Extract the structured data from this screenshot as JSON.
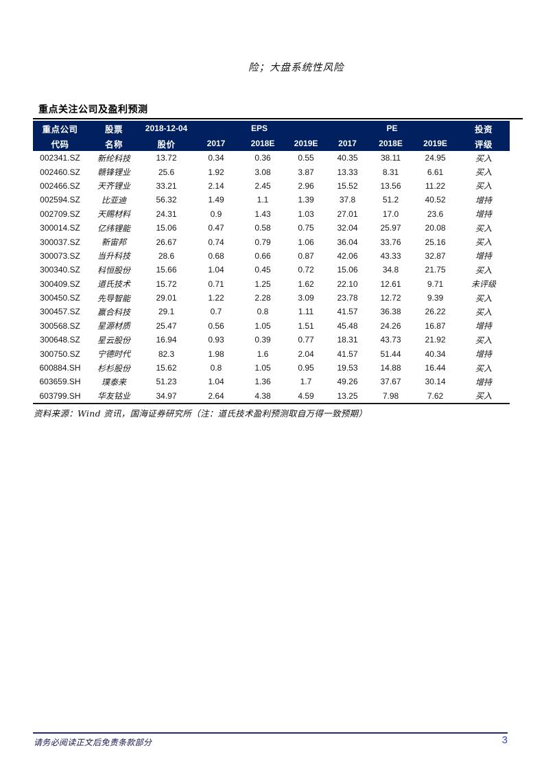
{
  "page": {
    "top_paragraph": "险；大盘系统性风险",
    "section_title": "重点关注公司及盈利预测",
    "source_note": "资料来源：Wind 资讯，国海证券研究所（注：道氏技术盈利预测取自万得一致预期）",
    "footer_disclaimer": "请务必阅读正文后免责条款部分",
    "page_number": "3"
  },
  "colors": {
    "header_bg": "#002060",
    "rule_dark": "#000000",
    "table_bottom_rule": "#1a1a1a",
    "footer_rule": "#1f2a78",
    "footer_text_color": "#14144b",
    "page_number_blue": "#3448c8"
  },
  "table": {
    "header_row1": [
      {
        "label": "重点公司",
        "span": 1,
        "type": "cjk"
      },
      {
        "label": "股票",
        "span": 1,
        "type": "cjk"
      },
      {
        "label": "2018-12-04",
        "span": 1,
        "type": "num"
      },
      {
        "label": "EPS",
        "span": 3,
        "type": "num"
      },
      {
        "label": "PE",
        "span": 3,
        "type": "num"
      },
      {
        "label": "投资",
        "span": 1,
        "type": "cjk"
      }
    ],
    "header_row2": [
      {
        "label": "代码",
        "span": 1,
        "type": "cjk"
      },
      {
        "label": "名称",
        "span": 1,
        "type": "cjk"
      },
      {
        "label": "股价",
        "span": 1,
        "type": "cjk"
      },
      {
        "label": "2017",
        "span": 1,
        "type": "num"
      },
      {
        "label": "2018E",
        "span": 1,
        "type": "num"
      },
      {
        "label": "2019E",
        "span": 1,
        "type": "num"
      },
      {
        "label": "2017",
        "span": 1,
        "type": "num"
      },
      {
        "label": "2018E",
        "span": 1,
        "type": "num"
      },
      {
        "label": "2019E",
        "span": 1,
        "type": "num"
      },
      {
        "label": "评级",
        "span": 1,
        "type": "cjk"
      }
    ],
    "rows": [
      [
        "002341.SZ",
        "新纶科技",
        "13.72",
        "0.34",
        "0.36",
        "0.55",
        "40.35",
        "38.11",
        "24.95",
        "买入"
      ],
      [
        "002460.SZ",
        "赣锋锂业",
        "25.6",
        "1.92",
        "3.08",
        "3.87",
        "13.33",
        "8.31",
        "6.61",
        "买入"
      ],
      [
        "002466.SZ",
        "天齐锂业",
        "33.21",
        "2.14",
        "2.45",
        "2.96",
        "15.52",
        "13.56",
        "11.22",
        "买入"
      ],
      [
        "002594.SZ",
        "比亚迪",
        "56.32",
        "1.49",
        "1.1",
        "1.39",
        "37.8",
        "51.2",
        "40.52",
        "增持"
      ],
      [
        "002709.SZ",
        "天赐材料",
        "24.31",
        "0.9",
        "1.43",
        "1.03",
        "27.01",
        "17.0",
        "23.6",
        "增持"
      ],
      [
        "300014.SZ",
        "亿纬锂能",
        "15.06",
        "0.47",
        "0.58",
        "0.75",
        "32.04",
        "25.97",
        "20.08",
        "买入"
      ],
      [
        "300037.SZ",
        "新宙邦",
        "26.67",
        "0.74",
        "0.79",
        "1.06",
        "36.04",
        "33.76",
        "25.16",
        "买入"
      ],
      [
        "300073.SZ",
        "当升科技",
        "28.6",
        "0.68",
        "0.66",
        "0.87",
        "42.06",
        "43.33",
        "32.87",
        "增持"
      ],
      [
        "300340.SZ",
        "科恒股份",
        "15.66",
        "1.04",
        "0.45",
        "0.72",
        "15.06",
        "34.8",
        "21.75",
        "买入"
      ],
      [
        "300409.SZ",
        "道氏技术",
        "15.72",
        "0.71",
        "1.25",
        "1.62",
        "22.10",
        "12.61",
        "9.71",
        "未评级"
      ],
      [
        "300450.SZ",
        "先导智能",
        "29.01",
        "1.22",
        "2.28",
        "3.09",
        "23.78",
        "12.72",
        "9.39",
        "买入"
      ],
      [
        "300457.SZ",
        "赢合科技",
        "29.1",
        "0.7",
        "0.8",
        "1.11",
        "41.57",
        "36.38",
        "26.22",
        "买入"
      ],
      [
        "300568.SZ",
        "星源材质",
        "25.47",
        "0.56",
        "1.05",
        "1.51",
        "45.48",
        "24.26",
        "16.87",
        "增持"
      ],
      [
        "300648.SZ",
        "星云股份",
        "16.94",
        "0.93",
        "0.39",
        "0.77",
        "18.31",
        "43.73",
        "21.92",
        "买入"
      ],
      [
        "300750.SZ",
        "宁德时代",
        "82.3",
        "1.98",
        "1.6",
        "2.04",
        "41.57",
        "51.44",
        "40.34",
        "增持"
      ],
      [
        "600884.SH",
        "杉杉股份",
        "15.62",
        "0.8",
        "1.05",
        "0.95",
        "19.53",
        "14.88",
        "16.44",
        "买入"
      ],
      [
        "603659.SH",
        "璞泰来",
        "51.23",
        "1.04",
        "1.36",
        "1.7",
        "49.26",
        "37.67",
        "30.14",
        "增持"
      ],
      [
        "603799.SH",
        "华友钴业",
        "34.97",
        "2.64",
        "4.38",
        "4.59",
        "13.25",
        "7.98",
        "7.62",
        "买入"
      ]
    ]
  }
}
